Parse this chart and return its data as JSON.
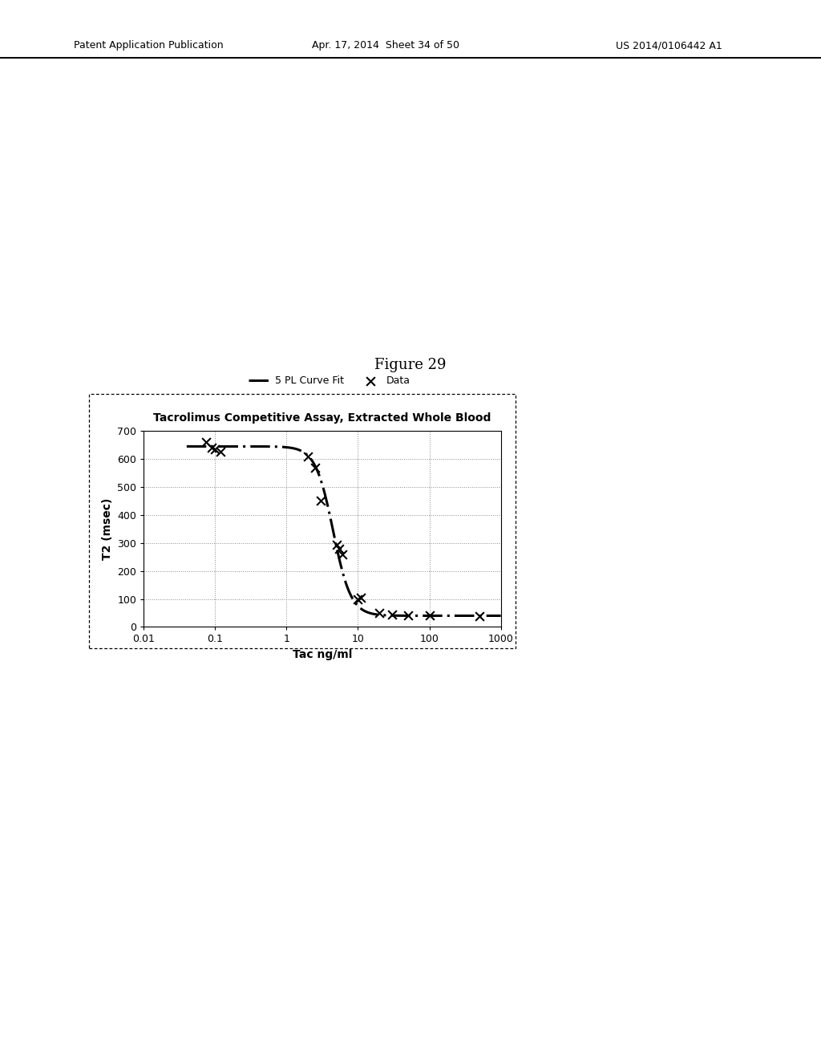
{
  "title": "Tacrolimus Competitive Assay, Extracted Whole Blood",
  "xlabel": "Tac ng/ml",
  "ylabel": "T2 (msec)",
  "figure_caption": "Figure 29",
  "ylim": [
    0,
    700
  ],
  "yticks": [
    0,
    100,
    200,
    300,
    400,
    500,
    600,
    700
  ],
  "xticks_log": [
    0.01,
    0.1,
    1,
    10,
    100,
    1000
  ],
  "background_color": "#ffffff",
  "five_pl_a": 645,
  "five_pl_b": 3.5,
  "five_pl_c": 4.5,
  "five_pl_d": 40,
  "five_pl_m": 1.0,
  "data_x": [
    0.075,
    0.09,
    0.1,
    0.12,
    2.0,
    2.5,
    3.0,
    5.0,
    5.5,
    6.0,
    10.0,
    11.0,
    20.0,
    30.0,
    50.0,
    100.0,
    500.0
  ],
  "data_y": [
    660,
    640,
    635,
    625,
    610,
    570,
    450,
    295,
    280,
    260,
    100,
    105,
    50,
    45,
    42,
    40,
    38
  ],
  "header_left": "Patent Application Publication",
  "header_center": "Apr. 17, 2014  Sheet 34 of 50",
  "header_right": "US 2014/0106442 A1",
  "legend_curve": "5 PL Curve Fit",
  "legend_data": "Data"
}
